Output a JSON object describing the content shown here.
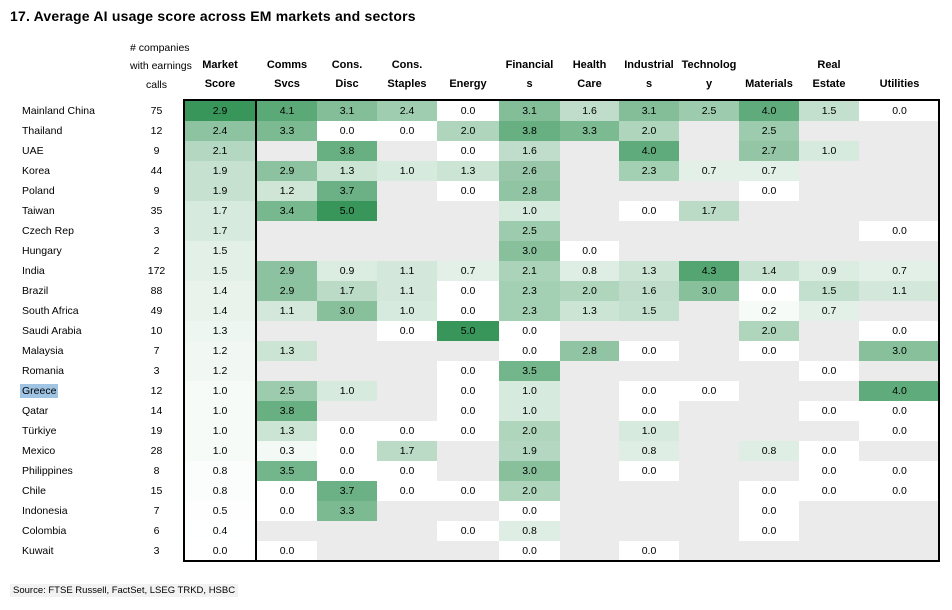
{
  "title": "17. Average AI usage score across EM markets and sectors",
  "source": "Source: FTSE Russell, FactSet, LSEG TRKD, HSBC",
  "chart_data": {
    "type": "heatmap",
    "title": "17. Average AI usage score across EM markets and sectors",
    "row_axis_label": "EM markets",
    "companies_header_lines": [
      "# companies",
      "with earnings",
      "calls"
    ],
    "columns": [
      "Market Score",
      "Comms Svcs",
      "Cons. Disc",
      "Cons. Staples",
      "Energy",
      "Financials",
      "Health Care",
      "Industrials",
      "Technology",
      "Materials",
      "Real Estate",
      "Utilities"
    ],
    "col_header_lines": [
      [
        "Market",
        "Score"
      ],
      [
        "Comms",
        "Svcs"
      ],
      [
        "Cons.",
        "Disc"
      ],
      [
        "Cons.",
        "Staples"
      ],
      [
        "",
        "Energy"
      ],
      [
        "Financial",
        "s"
      ],
      [
        "Health",
        "Care"
      ],
      [
        "Industrial",
        "s"
      ],
      [
        "Technolog",
        "y"
      ],
      [
        "",
        "Materials"
      ],
      [
        "Real",
        "Estate"
      ],
      [
        "",
        "Utilities"
      ]
    ],
    "rows": [
      {
        "market": "Mainland China",
        "companies": 75,
        "values": [
          2.9,
          4.1,
          3.1,
          2.4,
          0.0,
          3.1,
          1.6,
          3.1,
          2.5,
          4.0,
          1.5,
          0.0
        ]
      },
      {
        "market": "Thailand",
        "companies": 12,
        "values": [
          2.4,
          3.3,
          0.0,
          0.0,
          2.0,
          3.8,
          3.3,
          2.0,
          null,
          2.5,
          null,
          null
        ]
      },
      {
        "market": "UAE",
        "companies": 9,
        "values": [
          2.1,
          null,
          3.8,
          null,
          0.0,
          1.6,
          null,
          4.0,
          null,
          2.7,
          1.0,
          null
        ]
      },
      {
        "market": "Korea",
        "companies": 44,
        "values": [
          1.9,
          2.9,
          1.3,
          1.0,
          1.3,
          2.6,
          null,
          2.3,
          0.7,
          0.7,
          null,
          null
        ]
      },
      {
        "market": "Poland",
        "companies": 9,
        "values": [
          1.9,
          1.2,
          3.7,
          null,
          0.0,
          2.8,
          null,
          null,
          null,
          0.0,
          null,
          null
        ]
      },
      {
        "market": "Taiwan",
        "companies": 35,
        "values": [
          1.7,
          3.4,
          5.0,
          null,
          null,
          1.0,
          null,
          0.0,
          1.7,
          null,
          null,
          null
        ]
      },
      {
        "market": "Czech Rep",
        "companies": 3,
        "values": [
          1.7,
          null,
          null,
          null,
          null,
          2.5,
          null,
          null,
          null,
          null,
          null,
          0.0
        ]
      },
      {
        "market": "Hungary",
        "companies": 2,
        "values": [
          1.5,
          null,
          null,
          null,
          null,
          3.0,
          0.0,
          null,
          null,
          null,
          null,
          null
        ]
      },
      {
        "market": "India",
        "companies": 172,
        "values": [
          1.5,
          2.9,
          0.9,
          1.1,
          0.7,
          2.1,
          0.8,
          1.3,
          4.3,
          1.4,
          0.9,
          0.7
        ]
      },
      {
        "market": "Brazil",
        "companies": 88,
        "values": [
          1.4,
          2.9,
          1.7,
          1.1,
          0.0,
          2.3,
          2.0,
          1.6,
          3.0,
          0.0,
          1.5,
          1.1
        ]
      },
      {
        "market": "South Africa",
        "companies": 49,
        "values": [
          1.4,
          1.1,
          3.0,
          1.0,
          0.0,
          2.3,
          1.3,
          1.5,
          null,
          0.2,
          0.7,
          null
        ]
      },
      {
        "market": "Saudi Arabia",
        "companies": 10,
        "values": [
          1.3,
          null,
          null,
          0.0,
          5.0,
          0.0,
          null,
          null,
          null,
          2.0,
          null,
          0.0
        ]
      },
      {
        "market": "Malaysia",
        "companies": 7,
        "values": [
          1.2,
          1.3,
          null,
          null,
          null,
          0.0,
          2.8,
          0.0,
          null,
          0.0,
          null,
          3.0
        ]
      },
      {
        "market": "Romania",
        "companies": 3,
        "values": [
          1.2,
          null,
          null,
          null,
          0.0,
          3.5,
          null,
          null,
          null,
          null,
          0.0,
          null
        ]
      },
      {
        "market": "Greece",
        "companies": 12,
        "values": [
          1.0,
          2.5,
          1.0,
          null,
          0.0,
          1.0,
          null,
          0.0,
          0.0,
          null,
          null,
          4.0
        ],
        "highlighted": true
      },
      {
        "market": "Qatar",
        "companies": 14,
        "values": [
          1.0,
          3.8,
          null,
          null,
          0.0,
          1.0,
          null,
          0.0,
          null,
          null,
          0.0,
          0.0
        ]
      },
      {
        "market": "Türkiye",
        "companies": 19,
        "values": [
          1.0,
          1.3,
          0.0,
          0.0,
          0.0,
          2.0,
          null,
          1.0,
          null,
          null,
          null,
          0.0
        ]
      },
      {
        "market": "Mexico",
        "companies": 28,
        "values": [
          1.0,
          0.3,
          0.0,
          1.7,
          null,
          1.9,
          null,
          0.8,
          null,
          0.8,
          0.0,
          null
        ]
      },
      {
        "market": "Philippines",
        "companies": 8,
        "values": [
          0.8,
          3.5,
          0.0,
          0.0,
          null,
          3.0,
          null,
          0.0,
          null,
          null,
          0.0,
          0.0
        ]
      },
      {
        "market": "Chile",
        "companies": 15,
        "values": [
          0.8,
          0.0,
          3.7,
          0.0,
          0.0,
          2.0,
          null,
          null,
          null,
          0.0,
          0.0,
          0.0
        ]
      },
      {
        "market": "Indonesia",
        "companies": 7,
        "values": [
          0.5,
          0.0,
          3.3,
          null,
          null,
          0.0,
          null,
          null,
          null,
          0.0,
          null,
          null
        ]
      },
      {
        "market": "Colombia",
        "companies": 6,
        "values": [
          0.4,
          null,
          null,
          null,
          0.0,
          0.8,
          null,
          null,
          null,
          0.0,
          null,
          null
        ]
      },
      {
        "market": "Kuwait",
        "companies": 3,
        "values": [
          0.0,
          0.0,
          null,
          null,
          null,
          0.0,
          null,
          0.0,
          null,
          null,
          null,
          null
        ]
      }
    ],
    "scale": {
      "min": 0,
      "max": 5,
      "market_score_max": 2.9,
      "min_color": "#ffffff",
      "max_color": "#38965a",
      "empty_color": "#ebebeb"
    },
    "selection": {
      "highlighted_row": "Greece",
      "highlight_color": "#a0c4e4"
    }
  }
}
